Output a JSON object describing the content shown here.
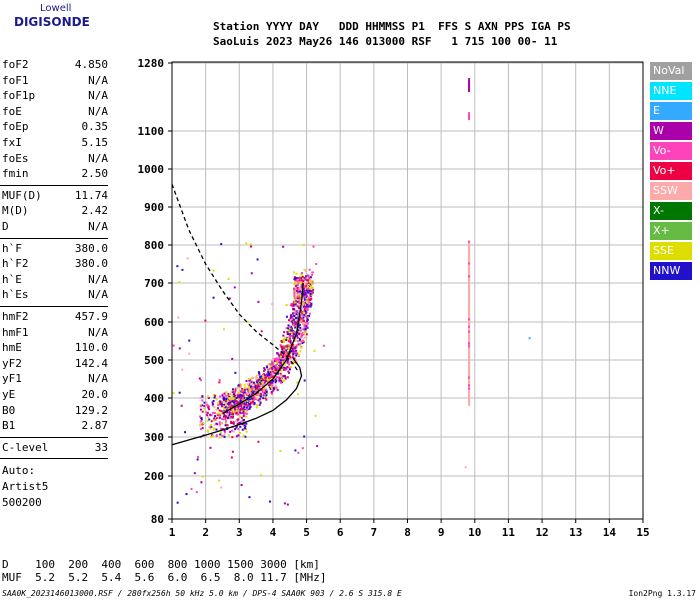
{
  "logo": {
    "top": "Lowell",
    "bottom": "DIGISONDE"
  },
  "header": {
    "line1": "Station YYYY DAY   DDD HHMMSS P1  FFS S AXN PPS IGA PS",
    "line2": "SaoLuis 2023 May26 146 013000 RSF   1 715 100 00- 11"
  },
  "params": {
    "group1": [
      {
        "name": "foF2",
        "value": "4.850"
      },
      {
        "name": "foF1",
        "value": "N/A"
      },
      {
        "name": "foF1p",
        "value": "N/A"
      },
      {
        "name": "foE",
        "value": "N/A"
      },
      {
        "name": "foEp",
        "value": "0.35"
      },
      {
        "name": "fxI",
        "value": "5.15"
      },
      {
        "name": "foEs",
        "value": "N/A"
      },
      {
        "name": "fmin",
        "value": "2.50"
      }
    ],
    "group2": [
      {
        "name": "MUF(D)",
        "value": "11.74"
      },
      {
        "name": "M(D)",
        "value": "2.42"
      },
      {
        "name": "D",
        "value": "N/A"
      }
    ],
    "group3": [
      {
        "name": "h`F",
        "value": "380.0"
      },
      {
        "name": "h`F2",
        "value": "380.0"
      },
      {
        "name": "h`E",
        "value": "N/A"
      },
      {
        "name": "h`Es",
        "value": "N/A"
      }
    ],
    "group4": [
      {
        "name": "hmF2",
        "value": "457.9"
      },
      {
        "name": "hmF1",
        "value": "N/A"
      },
      {
        "name": "hmE",
        "value": "110.0"
      },
      {
        "name": "yF2",
        "value": "142.4"
      },
      {
        "name": "yF1",
        "value": "N/A"
      },
      {
        "name": "yE",
        "value": "20.0"
      },
      {
        "name": "B0",
        "value": "129.2"
      },
      {
        "name": "B1",
        "value": "2.87"
      }
    ],
    "clevel": {
      "name": "C-level",
      "value": "33"
    },
    "auto": [
      "Auto:",
      "Artist5",
      "500200"
    ]
  },
  "legend": [
    {
      "label": "NoVal",
      "color": "#a0a0a0"
    },
    {
      "label": "NNE",
      "color": "#00e5ff"
    },
    {
      "label": "E",
      "color": "#33aaff"
    },
    {
      "label": "W",
      "color": "#aa00aa"
    },
    {
      "label": "Vo-",
      "color": "#ff44bb"
    },
    {
      "label": "Vo+",
      "color": "#ee0044"
    },
    {
      "label": "SSW",
      "color": "#ffaaaa"
    },
    {
      "label": "X-",
      "color": "#007700"
    },
    {
      "label": "X+",
      "color": "#66bb44"
    },
    {
      "label": "SSE",
      "color": "#dddd00"
    },
    {
      "label": "NNW",
      "color": "#2211cc"
    }
  ],
  "chart_data": {
    "type": "scatter",
    "x_ticks": [
      "1",
      "2",
      "3",
      "4",
      "5",
      "6",
      "7",
      "8",
      "9",
      "10",
      "11",
      "12",
      "13",
      "14",
      "15"
    ],
    "y_ticks": [
      "80",
      "200",
      "300",
      "400",
      "500",
      "600",
      "700",
      "800",
      "900",
      "1000",
      "1100",
      "1280"
    ],
    "xlim": [
      1,
      15
    ],
    "y_scale": "reciprocal-range",
    "grid": true,
    "profile_solid": [
      [
        1.0,
        280
      ],
      [
        2.0,
        305
      ],
      [
        2.5,
        318
      ],
      [
        3.0,
        332
      ],
      [
        3.5,
        348
      ],
      [
        4.0,
        368
      ],
      [
        4.4,
        395
      ],
      [
        4.7,
        425
      ],
      [
        4.85,
        458
      ],
      [
        4.8,
        480
      ],
      [
        4.6,
        505
      ]
    ],
    "trace_solid": [
      [
        2.5,
        360
      ],
      [
        3.0,
        385
      ],
      [
        3.5,
        412
      ],
      [
        4.0,
        450
      ],
      [
        4.4,
        500
      ],
      [
        4.7,
        570
      ],
      [
        4.85,
        650
      ],
      [
        4.9,
        700
      ]
    ],
    "trace_dashed": [
      [
        1.0,
        960
      ],
      [
        1.5,
        840
      ],
      [
        2.0,
        750
      ],
      [
        2.5,
        680
      ],
      [
        3.0,
        620
      ],
      [
        3.5,
        575
      ],
      [
        4.0,
        540
      ],
      [
        4.4,
        510
      ],
      [
        4.6,
        490
      ],
      [
        4.75,
        470
      ]
    ]
  },
  "bottom": {
    "d_line": "D    100  200  400  600  800 1000 1500 3000 [km]",
    "muf_line": "MUF  5.2  5.2  5.4  5.6  6.0  6.5  8.0 11.7 [MHz]",
    "footer": "SAA0K_2023146013000.RSF / 280fx256h 50 kHz 5.0 km / DPS-4 SAA0K 903 / 2.6 S 315.8 E",
    "version": "Ion2Png 1.3.17"
  }
}
